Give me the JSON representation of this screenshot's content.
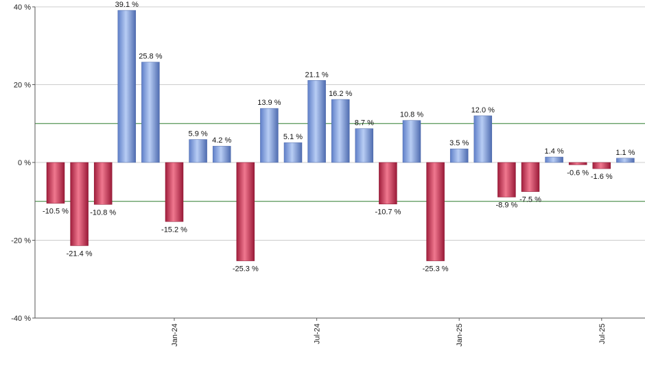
{
  "chart_data": {
    "type": "bar",
    "title": "",
    "xlabel": "",
    "ylabel": "",
    "ylim": [
      -40,
      40
    ],
    "y_ticks": [
      40,
      20,
      0,
      -20,
      -40
    ],
    "y_tick_labels": [
      "40 %",
      "20 %",
      "0 %",
      "-20 %",
      "-40 %"
    ],
    "reference_lines": [
      10,
      -10
    ],
    "x_tick_labels": [
      {
        "label": "Jan-24",
        "index": 5
      },
      {
        "label": "Jul-24",
        "index": 11
      },
      {
        "label": "Jan-25",
        "index": 17
      },
      {
        "label": "Jul-25",
        "index": 23
      }
    ],
    "values": [
      -10.5,
      -21.4,
      -10.8,
      39.1,
      25.8,
      -15.2,
      5.9,
      4.2,
      -25.3,
      13.9,
      5.1,
      21.1,
      16.2,
      8.7,
      -10.7,
      10.8,
      -25.3,
      3.5,
      12.0,
      -8.9,
      -7.5,
      1.4,
      -0.6,
      -1.6,
      1.1
    ],
    "labels": [
      "-10.5 %",
      "-21.4 %",
      "-10.8 %",
      "39.1 %",
      "25.8 %",
      "-15.2 %",
      "5.9 %",
      "4.2 %",
      "-25.3 %",
      "13.9 %",
      "5.1 %",
      "21.1 %",
      "16.2 %",
      "8.7 %",
      "-10.7 %",
      "10.8 %",
      "-25.3 %",
      "3.5 %",
      "12.0 %",
      "-8.9 %",
      "-7.5 %",
      "1.4 %",
      "-0.6 %",
      "-1.6 %",
      "1.1 %"
    ],
    "grid": true,
    "colors": {
      "positive": "#7f9fdc",
      "negative": "#c8304f",
      "reference_line": "#2e7d2e",
      "grid": "#cccccc"
    }
  }
}
